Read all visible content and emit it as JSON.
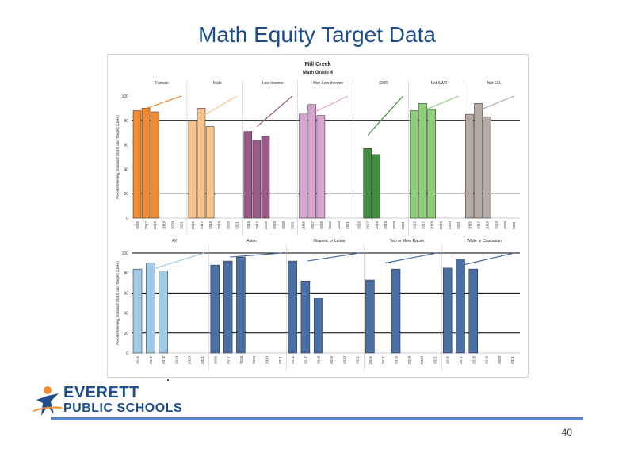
{
  "slide": {
    "title": "Math Equity Target Data",
    "page_number": "40",
    "logo_line1": "EVERETT",
    "logo_line2": "PUBLIC SCHOOLS"
  },
  "colors": {
    "title": "#1f4e8c",
    "footer_rule": "#5b84c4"
  },
  "chart_data": [
    {
      "type": "bar",
      "title": "Mill Creek",
      "subtitle": "Math Grade 4",
      "ylabel": "Percent Meeting Standard (Bars) and Targets (Lines)",
      "ylim": [
        0,
        100
      ],
      "yticks": [
        0,
        20,
        40,
        60,
        80,
        100
      ],
      "reference_lines": [
        20,
        80
      ],
      "years": [
        "2016",
        "2017",
        "2018",
        "2019",
        "2020",
        "2021"
      ],
      "groups": [
        {
          "name": "Female",
          "color": "#f28a2e",
          "values": [
            88,
            90,
            87,
            null,
            null,
            null
          ],
          "target": [
            90,
            92,
            100
          ]
        },
        {
          "name": "Male",
          "color": "#f9c48c",
          "values": [
            80,
            90,
            75,
            null,
            null,
            null
          ],
          "target": [
            83,
            90,
            100
          ]
        },
        {
          "name": "Low Income",
          "color": "#9b5b88",
          "values": [
            71,
            64,
            67,
            null,
            null,
            null
          ],
          "target": [
            75,
            88,
            100
          ]
        },
        {
          "name": "Non-Low Income",
          "color": "#d6a6cf",
          "values": [
            86,
            93,
            84,
            null,
            null,
            null
          ],
          "target": [
            86,
            93,
            100
          ]
        },
        {
          "name": "SWD",
          "color": "#3e8e3e",
          "values": [
            null,
            57,
            52,
            null,
            null,
            null
          ],
          "target": [
            68,
            85,
            100
          ]
        },
        {
          "name": "Not SWD",
          "color": "#8fcf7a",
          "values": [
            88,
            94,
            89,
            null,
            null,
            null
          ],
          "target": [
            88,
            94,
            100
          ]
        },
        {
          "name": "Not ELL",
          "color": "#b3aba4",
          "values": [
            85,
            94,
            83,
            null,
            null,
            null
          ],
          "target": [
            88,
            94,
            100
          ]
        }
      ]
    },
    {
      "type": "bar",
      "title": "",
      "ylabel": "Percent Meeting Standard (Bars) and Targets (Lines)",
      "ylim": [
        0,
        100
      ],
      "yticks": [
        0,
        20,
        40,
        60,
        80,
        100
      ],
      "reference_lines": [
        20,
        60,
        100
      ],
      "years": [
        "2016",
        "2017",
        "2018",
        "2019",
        "2020",
        "2021"
      ],
      "groups": [
        {
          "name": "All",
          "color": "#9fcbe8",
          "values": [
            84,
            90,
            82,
            null,
            null,
            null
          ],
          "target": [
            84,
            90,
            100
          ]
        },
        {
          "name": "Asian",
          "color": "#4a6fa5",
          "values": [
            88,
            92,
            96,
            null,
            null,
            null
          ],
          "target": [
            96,
            98,
            100
          ]
        },
        {
          "name": "Hispanic or Latino",
          "color": "#4a6fa5",
          "values": [
            92,
            72,
            55,
            null,
            null,
            null
          ],
          "target": [
            92,
            96,
            100
          ]
        },
        {
          "name": "Two or More Races",
          "color": "#4a6fa5",
          "values": [
            73,
            null,
            84,
            null,
            null,
            null
          ],
          "target": [
            90,
            95,
            100
          ]
        },
        {
          "name": "White or Caucasian",
          "color": "#4a6fa5",
          "values": [
            85,
            94,
            84,
            null,
            null,
            null
          ],
          "target": [
            88,
            94,
            100
          ]
        }
      ]
    }
  ]
}
